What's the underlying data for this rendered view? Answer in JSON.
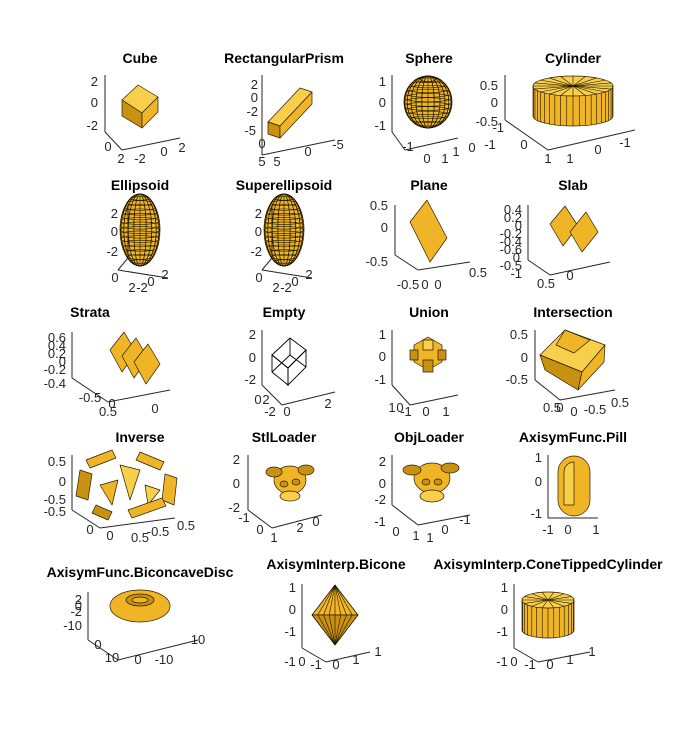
{
  "chart_data": [
    {
      "type": "surface3d",
      "title": "Cube",
      "tick_labels": [
        "2",
        "0",
        "-2",
        "0",
        "2",
        "-2",
        "0",
        "2"
      ]
    },
    {
      "type": "surface3d",
      "title": "RectangularPrism",
      "tick_labels": [
        "2",
        "0",
        "-2",
        "-5",
        "0",
        "5",
        "5",
        "0",
        "-5"
      ]
    },
    {
      "type": "surface3d",
      "title": "Sphere",
      "tick_labels": [
        "1",
        "0",
        "-1",
        "-1",
        "0",
        "1",
        "1",
        "0",
        "-1"
      ]
    },
    {
      "type": "surface3d",
      "title": "Cylinder",
      "tick_labels": [
        "0.5",
        "0",
        "-0.5",
        "-1",
        "0",
        "1",
        "1",
        "0",
        "-1"
      ]
    },
    {
      "type": "surface3d",
      "title": "Ellipsoid",
      "tick_labels": [
        "2",
        "0",
        "-2",
        "0",
        "2",
        "2",
        "0",
        "-2"
      ]
    },
    {
      "type": "surface3d",
      "title": "Superellipsoid",
      "tick_labels": [
        "2",
        "0",
        "-2",
        "0",
        "2",
        "2",
        "0",
        "-2"
      ]
    },
    {
      "type": "surface3d",
      "title": "Plane",
      "tick_labels": [
        "0.5",
        "0",
        "-0.5",
        "0",
        "0.5",
        "0",
        "-0.5"
      ]
    },
    {
      "type": "surface3d",
      "title": "Slab",
      "tick_labels": [
        "0.4",
        "0.2",
        "0",
        "-0.2",
        "-0.4",
        "-0.6",
        "0",
        "-0.5",
        "-1",
        "0.5",
        "0"
      ]
    },
    {
      "type": "surface3d",
      "title": "Strata",
      "tick_labels": [
        "0.6",
        "0.4",
        "0.2",
        "0",
        "-0.2",
        "-0.4",
        "-0.5",
        "0",
        "0.5",
        "0"
      ]
    },
    {
      "type": "surface3d",
      "title": "Empty",
      "tick_labels": [
        "2",
        "0",
        "-2",
        "-2",
        "0",
        "2",
        "2",
        "0"
      ]
    },
    {
      "type": "surface3d",
      "title": "Union",
      "tick_labels": [
        "1",
        "0",
        "-1",
        "-1",
        "0",
        "1",
        "1",
        "0"
      ]
    },
    {
      "type": "surface3d",
      "title": "Intersection",
      "tick_labels": [
        "0.5",
        "0",
        "-0.5",
        "0.5",
        "0",
        "-0.5",
        "0",
        "0.5"
      ]
    },
    {
      "type": "surface3d",
      "title": "Inverse",
      "tick_labels": [
        "0.5",
        "0",
        "-0.5",
        "-0.5",
        "0",
        "0.5",
        "0.5",
        "0",
        "-0.5"
      ]
    },
    {
      "type": "surface3d",
      "title": "StlLoader",
      "tick_labels": [
        "2",
        "0",
        "-2",
        "-1",
        "0",
        "1",
        "2",
        "0"
      ]
    },
    {
      "type": "surface3d",
      "title": "ObjLoader",
      "tick_labels": [
        "2",
        "0",
        "-2",
        "-1",
        "0",
        "1",
        "1",
        "0",
        "-1"
      ]
    },
    {
      "type": "surface3d",
      "title": "AxisymFunc.Pill",
      "tick_labels": [
        "1",
        "0",
        "-1",
        "-1",
        "0",
        "1"
      ]
    },
    {
      "type": "surface3d",
      "title": "AxisymFunc.BiconcaveDisc",
      "tick_labels": [
        "2",
        "0",
        "-2",
        "-10",
        "0",
        "10",
        "10",
        "0",
        "-10"
      ]
    },
    {
      "type": "surface3d",
      "title": "AxisymInterp.Bicone",
      "tick_labels": [
        "1",
        "0",
        "-1",
        "-1",
        "0",
        "1",
        "1",
        "0",
        "-1"
      ]
    },
    {
      "type": "surface3d",
      "title": "AxisymInterp.ConeTippedCylinder",
      "tick_labels": [
        "1",
        "0",
        "-1",
        "-1",
        "0",
        "1",
        "1",
        "0",
        "-1"
      ]
    }
  ]
}
